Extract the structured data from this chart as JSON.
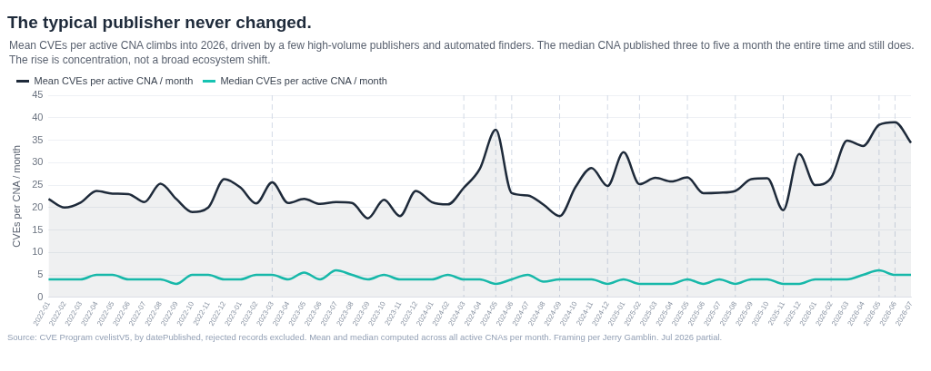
{
  "chart_data": {
    "type": "area",
    "title": "The typical publisher never changed.",
    "subtitle": "Mean CVEs per active CNA climbs into 2026, driven by a few high-volume publishers and automated finders. The median CNA published three to five a month the entire time and still does. The rise is concentration, not a broad ecosystem shift.",
    "ylabel": "CVEs per CNA / month",
    "categories": [
      "2022-01",
      "2022-02",
      "2022-03",
      "2022-04",
      "2022-05",
      "2022-06",
      "2022-07",
      "2022-08",
      "2022-09",
      "2022-10",
      "2022-11",
      "2022-12",
      "2023-01",
      "2023-02",
      "2023-03",
      "2023-04",
      "2023-05",
      "2023-06",
      "2023-07",
      "2023-08",
      "2023-09",
      "2023-10",
      "2023-11",
      "2023-12",
      "2024-01",
      "2024-02",
      "2024-03",
      "2024-04",
      "2024-05",
      "2024-06",
      "2024-07",
      "2024-08",
      "2024-09",
      "2024-10",
      "2024-11",
      "2024-12",
      "2025-01",
      "2025-02",
      "2025-03",
      "2025-04",
      "2025-05",
      "2025-06",
      "2025-07",
      "2025-08",
      "2025-09",
      "2025-10",
      "2025-11",
      "2025-12",
      "2026-01",
      "2026-02",
      "2026-03",
      "2026-04",
      "2026-05",
      "2026-06",
      "2026-07"
    ],
    "series": [
      {
        "name": "Mean CVEs per active CNA / month",
        "color": "#1e2a3a",
        "values": [
          21.9,
          20.0,
          21.1,
          23.7,
          23.1,
          23.0,
          21.2,
          25.3,
          21.9,
          19.0,
          20.0,
          26.3,
          24.5,
          20.9,
          25.6,
          21.0,
          21.9,
          20.8,
          21.2,
          21.0,
          17.6,
          21.7,
          18.1,
          23.7,
          21.2,
          20.7,
          24.4,
          28.6,
          37.3,
          23.2,
          22.7,
          20.6,
          18.1,
          24.6,
          28.8,
          24.8,
          32.3,
          25.2,
          26.6,
          25.8,
          26.7,
          23.2,
          23.3,
          23.7,
          26.3,
          26.5,
          19.4,
          31.9,
          25.0,
          26.6,
          34.9,
          33.7,
          38.4,
          39.0,
          34.4
        ]
      },
      {
        "name": "Median CVEs per active CNA / month",
        "type": "line",
        "color": "#17c3b2",
        "values": [
          4,
          4,
          4,
          5,
          5,
          4,
          4,
          4,
          3,
          5,
          5,
          4,
          4,
          5,
          5,
          4,
          5.5,
          4,
          6,
          5,
          4,
          5,
          4,
          4,
          4,
          5,
          4,
          4,
          3,
          4,
          5,
          3.5,
          4,
          4,
          4,
          3,
          4,
          3,
          3,
          3,
          4,
          3,
          4,
          3,
          4,
          4,
          3,
          3,
          4,
          4,
          4,
          5,
          6,
          5,
          5
        ]
      }
    ],
    "ylim": [
      0,
      45
    ],
    "yticks": [
      0,
      5,
      10,
      15,
      20,
      25,
      30,
      35,
      40,
      45
    ],
    "grid": "y",
    "legend": "top left",
    "line_style": "solid",
    "marker": "none",
    "ref_lines": [
      {
        "axis": "x",
        "value": "2023-03",
        "line_style": "dashed"
      },
      {
        "axis": "x",
        "value": "2024-03",
        "line_style": "dashed"
      },
      {
        "axis": "x",
        "value": "2024-05",
        "line_style": "dashed"
      },
      {
        "axis": "x",
        "value": "2024-06",
        "line_style": "dashed"
      },
      {
        "axis": "x",
        "value": "2024-09",
        "line_style": "dashed"
      },
      {
        "axis": "x",
        "value": "2024-12",
        "line_style": "dashed"
      },
      {
        "axis": "x",
        "value": "2025-02",
        "line_style": "dashed"
      },
      {
        "axis": "x",
        "value": "2025-05",
        "line_style": "dashed"
      },
      {
        "axis": "x",
        "value": "2025-08",
        "line_style": "dashed"
      },
      {
        "axis": "x",
        "value": "2025-11",
        "line_style": "dashed"
      },
      {
        "axis": "x",
        "value": "2026-02",
        "line_style": "dashed"
      },
      {
        "axis": "x",
        "value": "2026-05",
        "line_style": "dashed"
      },
      {
        "axis": "x",
        "value": "2026-06",
        "line_style": "dashed"
      }
    ],
    "annotations": [
      "Source: CVE Program cvelistV5, by datePublished, rejected records excluded. Mean and median computed across all active CNAs per month. Framing per Jerry Gamblin. Jul 2026 partial."
    ]
  }
}
